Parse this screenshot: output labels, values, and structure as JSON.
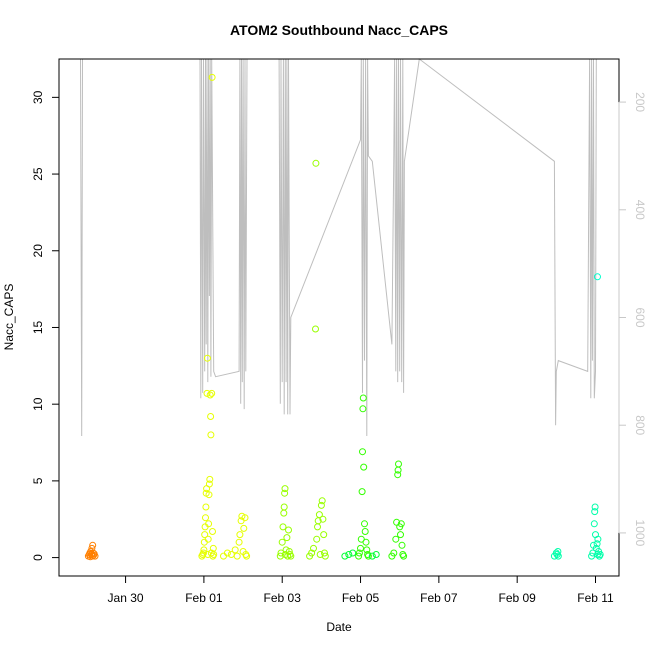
{
  "chart_data": {
    "type": "scatter",
    "title": "ATOM2 Southbound Nacc_CAPS",
    "xlabel": "Date",
    "ylabel": "Nacc_CAPS",
    "x_ticks": [
      "Jan 30",
      "Feb 01",
      "Feb 03",
      "Feb 05",
      "Feb 07",
      "Feb 09",
      "Feb 11"
    ],
    "x_tick_values": [
      2.0,
      4.0,
      6.0,
      8.0,
      10.0,
      12.0,
      14.0
    ],
    "xlim": [
      0.3,
      14.6
    ],
    "y_ticks": [
      "0",
      "5",
      "10",
      "15",
      "20",
      "25",
      "30"
    ],
    "y_tick_values": [
      0,
      5,
      10,
      15,
      20,
      25,
      30
    ],
    "ylim": [
      -1.2,
      32.5
    ],
    "right_axis": {
      "ticks": [
        "200",
        "400",
        "600",
        "800",
        "1000"
      ],
      "tick_values": [
        200,
        400,
        600,
        800,
        1000
      ],
      "lim": [
        1080,
        120
      ],
      "color": "#c8c8c8"
    },
    "series": [
      {
        "color": "#ff7f00",
        "points": [
          [
            1.05,
            0.1
          ],
          [
            1.07,
            0.2
          ],
          [
            1.09,
            0.3
          ],
          [
            1.1,
            0.05
          ],
          [
            1.11,
            0.4
          ],
          [
            1.13,
            0.2
          ],
          [
            1.14,
            0.6
          ],
          [
            1.15,
            0.1
          ],
          [
            1.16,
            0.8
          ],
          [
            1.17,
            0.3
          ],
          [
            1.18,
            0.15
          ],
          [
            1.2,
            0.25
          ],
          [
            1.22,
            0.1
          ]
        ]
      },
      {
        "color": "#e6ff00",
        "points": [
          [
            3.95,
            0.1
          ],
          [
            3.97,
            0.2
          ],
          [
            3.99,
            0.3
          ],
          [
            4.0,
            0.5
          ],
          [
            4.01,
            1.0
          ],
          [
            4.02,
            1.5
          ],
          [
            4.03,
            2.0
          ],
          [
            4.04,
            2.6
          ],
          [
            4.05,
            3.3
          ],
          [
            4.06,
            4.2
          ],
          [
            4.07,
            4.5
          ],
          [
            4.08,
            10.7
          ],
          [
            4.09,
            13.0
          ],
          [
            4.1,
            0.2
          ],
          [
            4.11,
            1.2
          ],
          [
            4.12,
            2.2
          ],
          [
            4.13,
            4.1
          ],
          [
            4.14,
            4.8
          ],
          [
            4.15,
            5.1
          ],
          [
            4.16,
            10.6
          ],
          [
            4.17,
            9.2
          ],
          [
            4.18,
            8.0
          ],
          [
            4.19,
            0.3
          ],
          [
            4.2,
            10.7
          ],
          [
            4.21,
            31.3
          ],
          [
            4.22,
            1.7
          ],
          [
            4.23,
            0.1
          ],
          [
            4.24,
            0.6
          ],
          [
            4.25,
            0.2
          ],
          [
            4.5,
            0.1
          ],
          [
            4.6,
            0.3
          ],
          [
            4.7,
            0.2
          ],
          [
            4.8,
            0.5
          ],
          [
            4.85,
            0.1
          ],
          [
            4.9,
            1.0
          ],
          [
            4.92,
            1.5
          ],
          [
            4.95,
            2.4
          ],
          [
            4.97,
            2.7
          ],
          [
            5.0,
            0.4
          ],
          [
            5.02,
            1.9
          ],
          [
            5.05,
            2.6
          ],
          [
            5.07,
            0.2
          ],
          [
            5.09,
            0.1
          ]
        ]
      },
      {
        "color": "#99ff00",
        "points": [
          [
            5.95,
            0.1
          ],
          [
            5.97,
            0.3
          ],
          [
            6.0,
            1.0
          ],
          [
            6.02,
            2.0
          ],
          [
            6.04,
            2.9
          ],
          [
            6.05,
            3.3
          ],
          [
            6.06,
            4.2
          ],
          [
            6.07,
            4.5
          ],
          [
            6.08,
            0.2
          ],
          [
            6.1,
            0.5
          ],
          [
            6.12,
            1.3
          ],
          [
            6.14,
            0.1
          ],
          [
            6.16,
            1.8
          ],
          [
            6.18,
            0.4
          ],
          [
            6.2,
            0.2
          ],
          [
            6.22,
            0.1
          ],
          [
            6.7,
            0.1
          ],
          [
            6.75,
            0.3
          ],
          [
            6.8,
            0.6
          ],
          [
            6.85,
            14.9
          ],
          [
            6.86,
            25.7
          ],
          [
            6.88,
            1.2
          ],
          [
            6.9,
            2.0
          ],
          [
            6.92,
            2.4
          ],
          [
            6.95,
            2.8
          ],
          [
            6.97,
            0.2
          ],
          [
            7.0,
            3.4
          ],
          [
            7.02,
            3.7
          ],
          [
            7.04,
            2.5
          ],
          [
            7.06,
            1.5
          ],
          [
            7.08,
            0.3
          ],
          [
            7.1,
            0.1
          ]
        ]
      },
      {
        "color": "#33ff00",
        "points": [
          [
            7.95,
            0.1
          ],
          [
            7.97,
            0.3
          ],
          [
            8.0,
            0.6
          ],
          [
            8.02,
            1.2
          ],
          [
            8.04,
            4.3
          ],
          [
            8.05,
            6.9
          ],
          [
            8.06,
            9.7
          ],
          [
            8.07,
            10.4
          ],
          [
            8.08,
            5.9
          ],
          [
            8.1,
            2.2
          ],
          [
            8.12,
            1.7
          ],
          [
            8.14,
            1.0
          ],
          [
            8.16,
            0.5
          ],
          [
            8.18,
            0.2
          ],
          [
            8.2,
            0.1
          ],
          [
            8.8,
            0.1
          ],
          [
            8.85,
            0.3
          ],
          [
            8.9,
            1.2
          ],
          [
            8.92,
            2.3
          ],
          [
            8.95,
            5.4
          ],
          [
            8.96,
            5.7
          ],
          [
            8.97,
            6.1
          ],
          [
            9.0,
            2.0
          ],
          [
            9.02,
            1.5
          ],
          [
            9.04,
            2.2
          ],
          [
            9.06,
            0.8
          ],
          [
            9.08,
            0.2
          ],
          [
            9.1,
            0.1
          ]
        ]
      },
      {
        "color": "#00ff33",
        "points": [
          [
            7.6,
            0.1
          ],
          [
            7.7,
            0.2
          ],
          [
            7.8,
            0.3
          ],
          [
            8.3,
            0.1
          ],
          [
            8.4,
            0.2
          ]
        ]
      },
      {
        "color": "#00ffaa",
        "points": [
          [
            12.95,
            0.1
          ],
          [
            13.0,
            0.3
          ],
          [
            13.02,
            0.2
          ],
          [
            13.04,
            0.4
          ],
          [
            13.05,
            0.1
          ],
          [
            13.9,
            0.1
          ],
          [
            13.93,
            0.3
          ],
          [
            13.95,
            0.8
          ],
          [
            13.97,
            2.2
          ],
          [
            13.98,
            3.0
          ],
          [
            13.99,
            3.3
          ],
          [
            14.0,
            1.5
          ],
          [
            14.02,
            0.6
          ],
          [
            14.04,
            0.9
          ],
          [
            14.05,
            0.2
          ],
          [
            14.06,
            1.2
          ],
          [
            14.08,
            0.4
          ],
          [
            14.1,
            0.1
          ],
          [
            14.12,
            0.2
          ]
        ]
      },
      {
        "color": "#00ffcc",
        "points": [
          [
            14.05,
            18.3
          ]
        ]
      }
    ],
    "altitude_line": {
      "color": "#bebebe",
      "points": [
        [
          0.85,
          120
        ],
        [
          0.88,
          820
        ],
        [
          0.9,
          120
        ],
        [
          3.9,
          120
        ],
        [
          3.92,
          750
        ],
        [
          3.94,
          120
        ],
        [
          3.97,
          740
        ],
        [
          3.99,
          120
        ],
        [
          4.02,
          700
        ],
        [
          4.04,
          120
        ],
        [
          4.06,
          650
        ],
        [
          4.08,
          120
        ],
        [
          4.1,
          720
        ],
        [
          4.12,
          120
        ],
        [
          4.14,
          560
        ],
        [
          4.16,
          120
        ],
        [
          4.18,
          710
        ],
        [
          4.2,
          120
        ],
        [
          4.25,
          700
        ],
        [
          4.3,
          710
        ],
        [
          4.9,
          700
        ],
        [
          4.92,
          120
        ],
        [
          4.94,
          760
        ],
        [
          4.96,
          120
        ],
        [
          4.98,
          720
        ],
        [
          5.0,
          120
        ],
        [
          5.03,
          770
        ],
        [
          5.05,
          120
        ],
        [
          5.07,
          700
        ],
        [
          5.1,
          120
        ],
        [
          5.92,
          120
        ],
        [
          5.95,
          760
        ],
        [
          5.97,
          120
        ],
        [
          6.0,
          720
        ],
        [
          6.03,
          120
        ],
        [
          6.05,
          780
        ],
        [
          6.08,
          120
        ],
        [
          6.1,
          720
        ],
        [
          6.12,
          120
        ],
        [
          6.14,
          780
        ],
        [
          6.16,
          120
        ],
        [
          6.2,
          780
        ],
        [
          6.22,
          600
        ],
        [
          8.0,
          270
        ],
        [
          8.02,
          120
        ],
        [
          8.05,
          740
        ],
        [
          8.07,
          120
        ],
        [
          8.1,
          680
        ],
        [
          8.13,
          120
        ],
        [
          8.16,
          820
        ],
        [
          8.18,
          120
        ],
        [
          8.2,
          300
        ],
        [
          8.3,
          310
        ],
        [
          8.8,
          650
        ],
        [
          8.85,
          300
        ],
        [
          8.87,
          120
        ],
        [
          8.9,
          700
        ],
        [
          8.92,
          120
        ],
        [
          8.95,
          720
        ],
        [
          8.97,
          120
        ],
        [
          9.0,
          700
        ],
        [
          9.02,
          120
        ],
        [
          9.05,
          720
        ],
        [
          9.08,
          120
        ],
        [
          9.1,
          740
        ],
        [
          9.12,
          310
        ],
        [
          9.5,
          120
        ],
        [
          12.95,
          310
        ],
        [
          12.98,
          800
        ],
        [
          13.0,
          700
        ],
        [
          13.05,
          680
        ],
        [
          13.8,
          700
        ],
        [
          13.85,
          120
        ],
        [
          13.88,
          750
        ],
        [
          13.9,
          120
        ],
        [
          13.92,
          680
        ],
        [
          13.95,
          120
        ],
        [
          13.97,
          750
        ],
        [
          14.0,
          700
        ],
        [
          14.02,
          120
        ]
      ]
    }
  }
}
